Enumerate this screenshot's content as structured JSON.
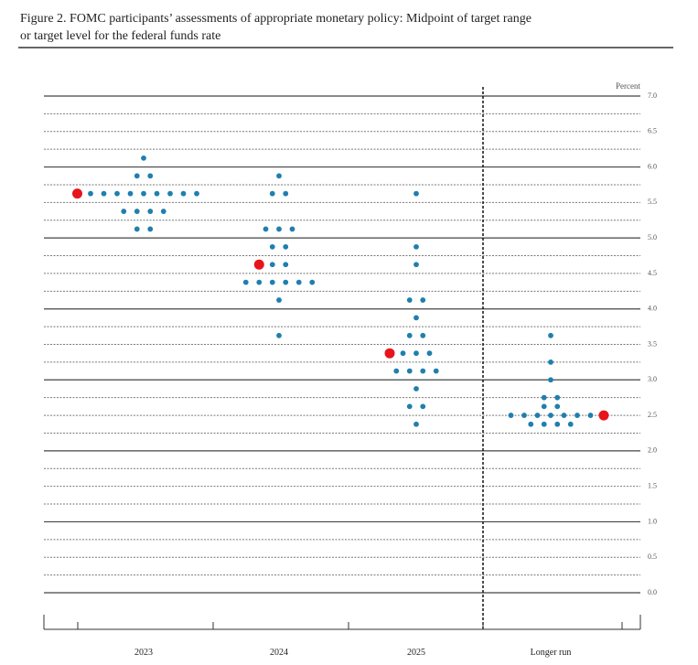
{
  "chart_data": {
    "type": "dot",
    "title": "Figure 2. FOMC participants’ assessments of appropriate monetary policy: Midpoint of target range or target level for the federal funds rate",
    "y_label": "Percent",
    "categories": [
      "2023",
      "2024",
      "2025",
      "Longer run"
    ],
    "dots": [
      [
        {
          "value": 6.125,
          "count": 1
        },
        {
          "value": 5.875,
          "count": 2
        },
        {
          "value": 5.625,
          "count": 9
        },
        {
          "value": 5.375,
          "count": 4
        },
        {
          "value": 5.125,
          "count": 2
        }
      ],
      [
        {
          "value": 5.875,
          "count": 1
        },
        {
          "value": 5.625,
          "count": 2
        },
        {
          "value": 5.125,
          "count": 3
        },
        {
          "value": 4.875,
          "count": 2
        },
        {
          "value": 4.625,
          "count": 2
        },
        {
          "value": 4.375,
          "count": 6
        },
        {
          "value": 4.125,
          "count": 1
        },
        {
          "value": 3.625,
          "count": 1
        }
      ],
      [
        {
          "value": 5.625,
          "count": 1
        },
        {
          "value": 4.875,
          "count": 1
        },
        {
          "value": 4.625,
          "count": 1
        },
        {
          "value": 4.125,
          "count": 2
        },
        {
          "value": 3.875,
          "count": 1
        },
        {
          "value": 3.625,
          "count": 2
        },
        {
          "value": 3.375,
          "count": 3
        },
        {
          "value": 3.125,
          "count": 4
        },
        {
          "value": 2.875,
          "count": 1
        },
        {
          "value": 2.625,
          "count": 2
        },
        {
          "value": 2.375,
          "count": 1
        }
      ],
      [
        {
          "value": 3.625,
          "count": 1
        },
        {
          "value": 3.25,
          "count": 1
        },
        {
          "value": 3.0,
          "count": 1
        },
        {
          "value": 2.75,
          "count": 2
        },
        {
          "value": 2.625,
          "count": 2
        },
        {
          "value": 2.5,
          "count": 7
        },
        {
          "value": 2.375,
          "count": 4
        }
      ]
    ],
    "medians": [
      5.625,
      4.625,
      3.375,
      2.5
    ],
    "dot_color": "#1f7fae",
    "median_color": "#e8141b",
    "ylim": [
      0,
      7
    ],
    "yticks": [
      {
        "value": 0,
        "label": "0.0"
      },
      {
        "value": 0.5,
        "label": "0.5"
      },
      {
        "value": 1,
        "label": "1.0"
      },
      {
        "value": 1.5,
        "label": "1.5"
      },
      {
        "value": 2,
        "label": "2.0"
      },
      {
        "value": 2.5,
        "label": "2.5"
      },
      {
        "value": 3,
        "label": "3.0"
      },
      {
        "value": 3.5,
        "label": "3.5"
      },
      {
        "value": 4,
        "label": "4.0"
      },
      {
        "value": 4.5,
        "label": "4.5"
      },
      {
        "value": 5,
        "label": "5.0"
      },
      {
        "value": 5.5,
        "label": "5.5"
      },
      {
        "value": 6,
        "label": "6.0"
      },
      {
        "value": 6.5,
        "label": "6.5"
      },
      {
        "value": 7,
        "label": "7.0"
      }
    ],
    "grid": true
  }
}
